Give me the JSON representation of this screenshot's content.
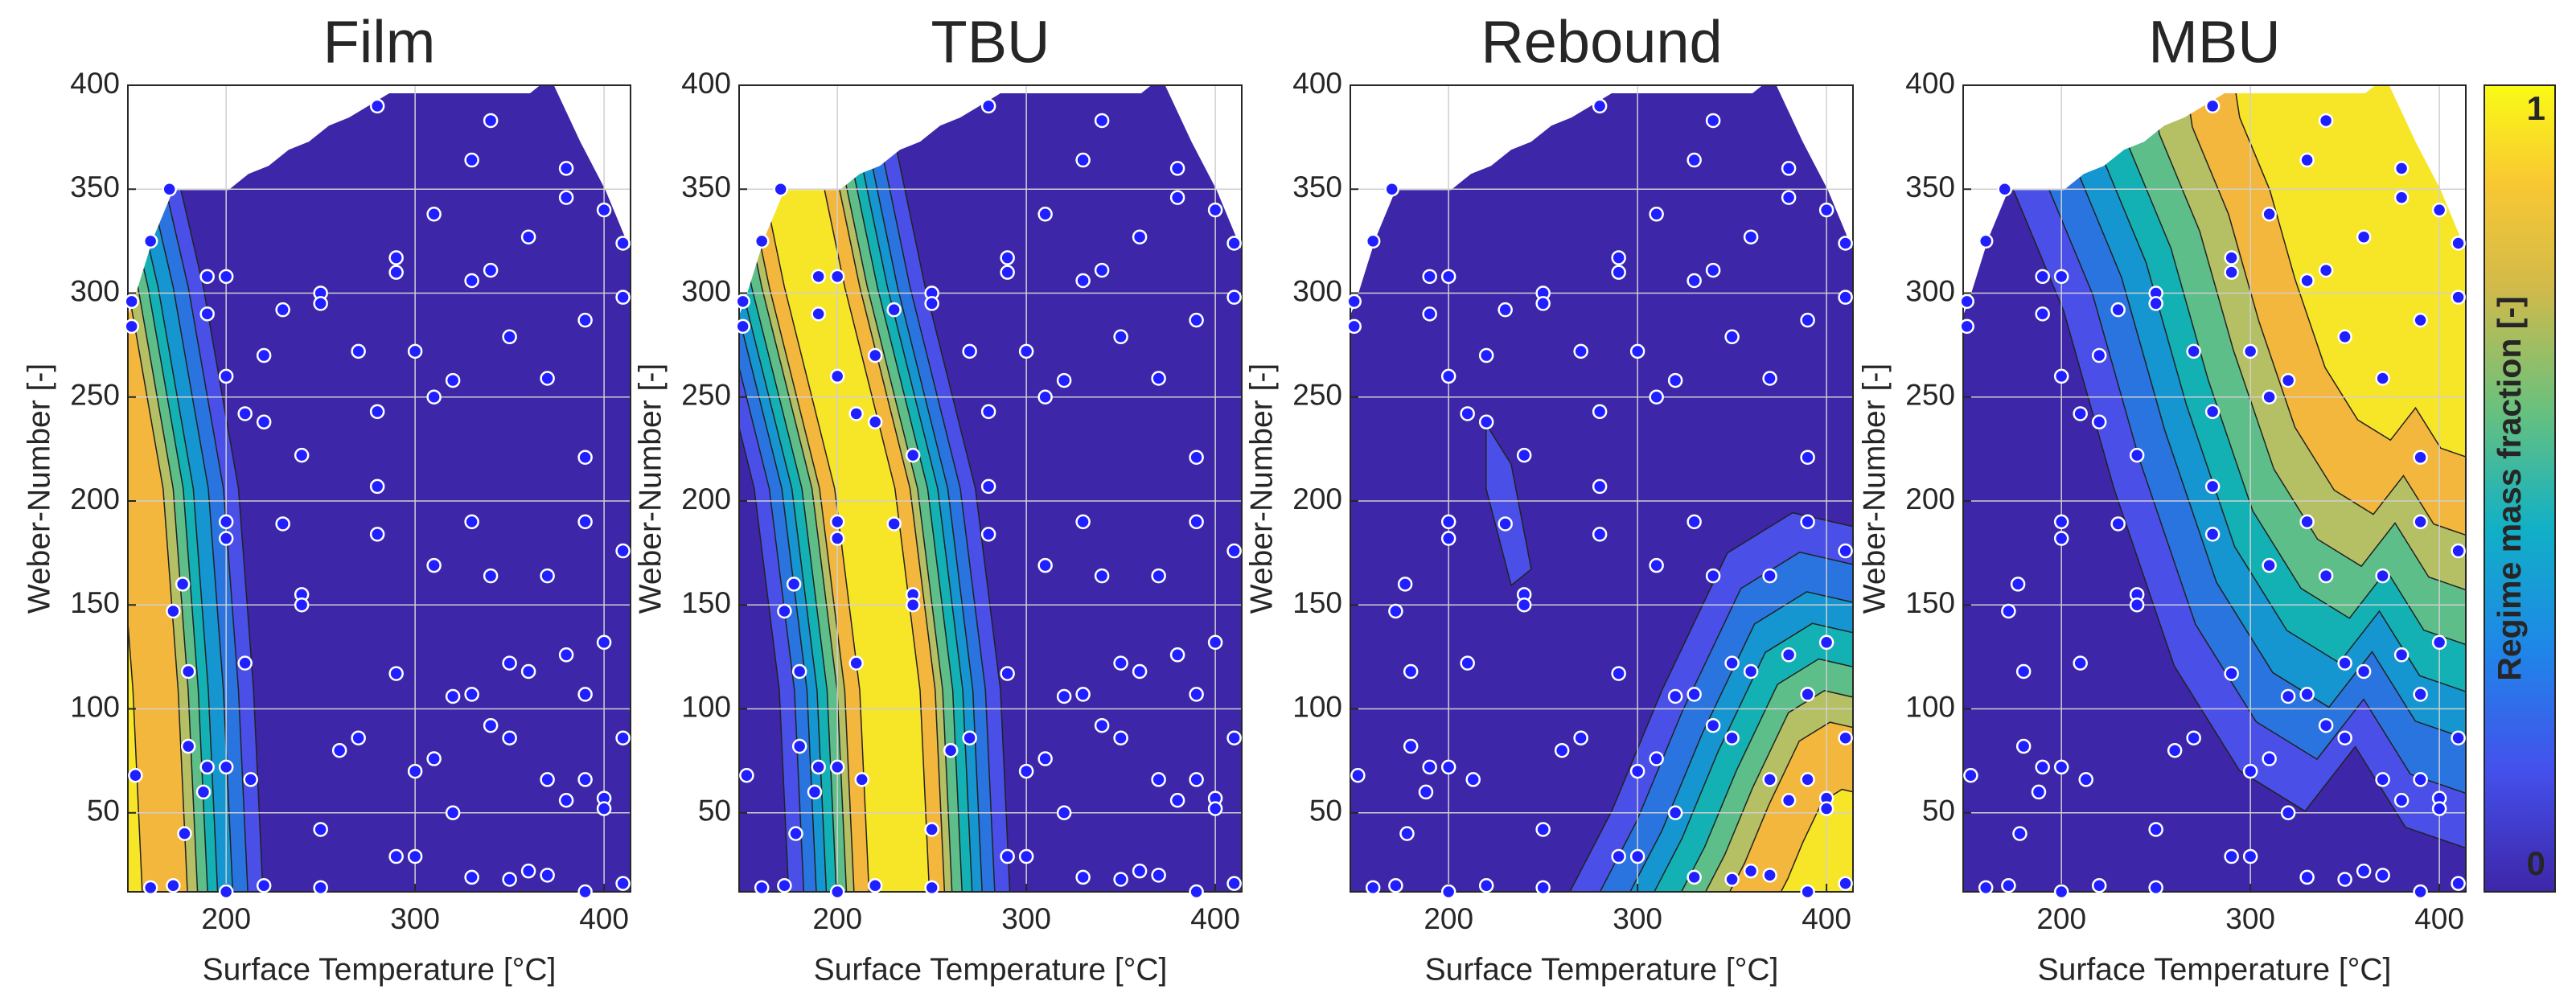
{
  "chart_data": [
    {
      "type": "contour",
      "title": "Film",
      "x_label": "Surface Temperature [°C]",
      "y_label": "Weber-Number [-]",
      "xlim": [
        148,
        414
      ],
      "ylim": [
        12,
        400
      ],
      "xticks": [
        200,
        300,
        400
      ],
      "yticks": [
        50,
        100,
        150,
        200,
        250,
        300,
        350,
        400
      ],
      "grid": true,
      "point_color": "#1f1fff",
      "points": {
        "x": [
          150,
          150,
          160,
          170,
          152,
          160,
          172,
          177,
          172,
          180,
          180,
          178,
          190,
          190,
          190,
          188,
          200,
          200,
          200,
          200,
          200,
          200,
          210,
          210,
          213,
          220,
          220,
          220,
          230,
          230,
          240,
          240,
          240,
          250,
          250,
          250,
          250,
          260,
          270,
          270,
          280,
          280,
          280,
          280,
          290,
          290,
          290,
          290,
          300,
          300,
          300,
          310,
          310,
          310,
          310,
          320,
          320,
          320,
          330,
          330,
          330,
          330,
          330,
          340,
          340,
          340,
          340,
          350,
          350,
          350,
          350,
          360,
          360,
          360,
          370,
          370,
          370,
          370,
          380,
          380,
          380,
          380,
          390,
          390,
          390,
          390,
          390,
          390,
          400,
          400,
          400,
          400,
          410,
          410,
          410,
          410,
          410
        ],
        "y": [
          296,
          284,
          325,
          350,
          68,
          14,
          15,
          160,
          147,
          118,
          82,
          40,
          308,
          290,
          72,
          60,
          12,
          308,
          260,
          190,
          182,
          72,
          242,
          122,
          66,
          270,
          238,
          15,
          292,
          189,
          222,
          155,
          150,
          300,
          295,
          42,
          14,
          80,
          272,
          86,
          390,
          243,
          207,
          184,
          317,
          310,
          117,
          29,
          272,
          70,
          29,
          338,
          250,
          169,
          76,
          258,
          106,
          50,
          364,
          306,
          190,
          107,
          19,
          383,
          311,
          164,
          92,
          279,
          122,
          86,
          18,
          327,
          118,
          22,
          259,
          164,
          66,
          20,
          360,
          346,
          126,
          56,
          287,
          221,
          190,
          107,
          66,
          12,
          340,
          132,
          57,
          52,
          324,
          298,
          176,
          86,
          16
        ]
      }
    },
    {
      "type": "contour",
      "title": "TBU",
      "x_label": "Surface Temperature [°C]",
      "y_label": "Weber-Number [-]",
      "xlim": [
        148,
        414
      ],
      "ylim": [
        12,
        400
      ],
      "xticks": [
        200,
        300,
        400
      ],
      "yticks": [
        50,
        100,
        150,
        200,
        250,
        300,
        350,
        400
      ],
      "grid": true,
      "point_color": "#1f1fff",
      "points": {
        "x": [
          150,
          150,
          160,
          170,
          152,
          160,
          172,
          177,
          172,
          180,
          180,
          178,
          190,
          190,
          190,
          188,
          200,
          200,
          200,
          200,
          200,
          200,
          210,
          210,
          213,
          220,
          220,
          220,
          230,
          230,
          240,
          240,
          240,
          250,
          250,
          250,
          250,
          260,
          270,
          270,
          280,
          280,
          280,
          280,
          290,
          290,
          290,
          290,
          300,
          300,
          300,
          310,
          310,
          310,
          310,
          320,
          320,
          320,
          330,
          330,
          330,
          330,
          330,
          340,
          340,
          340,
          340,
          350,
          350,
          350,
          350,
          360,
          360,
          360,
          370,
          370,
          370,
          370,
          380,
          380,
          380,
          380,
          390,
          390,
          390,
          390,
          390,
          390,
          400,
          400,
          400,
          400,
          410,
          410,
          410,
          410,
          410
        ],
        "y": [
          296,
          284,
          325,
          350,
          68,
          14,
          15,
          160,
          147,
          118,
          82,
          40,
          308,
          290,
          72,
          60,
          12,
          308,
          260,
          190,
          182,
          72,
          242,
          122,
          66,
          270,
          238,
          15,
          292,
          189,
          222,
          155,
          150,
          300,
          295,
          42,
          14,
          80,
          272,
          86,
          390,
          243,
          207,
          184,
          317,
          310,
          117,
          29,
          272,
          70,
          29,
          338,
          250,
          169,
          76,
          258,
          106,
          50,
          364,
          306,
          190,
          107,
          19,
          383,
          311,
          164,
          92,
          279,
          122,
          86,
          18,
          327,
          118,
          22,
          259,
          164,
          66,
          20,
          360,
          346,
          126,
          56,
          287,
          221,
          190,
          107,
          66,
          12,
          340,
          132,
          57,
          52,
          324,
          298,
          176,
          86,
          16
        ]
      }
    },
    {
      "type": "contour",
      "title": "Rebound",
      "x_label": "Surface Temperature [°C]",
      "y_label": "Weber-Number [-]",
      "xlim": [
        148,
        414
      ],
      "ylim": [
        12,
        400
      ],
      "xticks": [
        200,
        300,
        400
      ],
      "yticks": [
        50,
        100,
        150,
        200,
        250,
        300,
        350,
        400
      ],
      "grid": true,
      "point_color": "#1f1fff",
      "points": {
        "x": [
          150,
          150,
          160,
          170,
          152,
          160,
          172,
          177,
          172,
          180,
          180,
          178,
          190,
          190,
          190,
          188,
          200,
          200,
          200,
          200,
          200,
          200,
          210,
          210,
          213,
          220,
          220,
          220,
          230,
          230,
          240,
          240,
          240,
          250,
          250,
          250,
          250,
          260,
          270,
          270,
          280,
          280,
          280,
          280,
          290,
          290,
          290,
          290,
          300,
          300,
          300,
          310,
          310,
          310,
          310,
          320,
          320,
          320,
          330,
          330,
          330,
          330,
          330,
          340,
          340,
          340,
          340,
          350,
          350,
          350,
          350,
          360,
          360,
          360,
          370,
          370,
          370,
          370,
          380,
          380,
          380,
          380,
          390,
          390,
          390,
          390,
          390,
          390,
          400,
          400,
          400,
          400,
          410,
          410,
          410,
          410,
          410
        ],
        "y": [
          296,
          284,
          325,
          350,
          68,
          14,
          15,
          160,
          147,
          118,
          82,
          40,
          308,
          290,
          72,
          60,
          12,
          308,
          260,
          190,
          182,
          72,
          242,
          122,
          66,
          270,
          238,
          15,
          292,
          189,
          222,
          155,
          150,
          300,
          295,
          42,
          14,
          80,
          272,
          86,
          390,
          243,
          207,
          184,
          317,
          310,
          117,
          29,
          272,
          70,
          29,
          338,
          250,
          169,
          76,
          258,
          106,
          50,
          364,
          306,
          190,
          107,
          19,
          383,
          311,
          164,
          92,
          279,
          122,
          86,
          18,
          327,
          118,
          22,
          259,
          164,
          66,
          20,
          360,
          346,
          126,
          56,
          287,
          221,
          190,
          107,
          66,
          12,
          340,
          132,
          57,
          52,
          324,
          298,
          176,
          86,
          16
        ]
      }
    },
    {
      "type": "contour",
      "title": "MBU",
      "x_label": "Surface Temperature [°C]",
      "y_label": "Weber-Number [-]",
      "xlim": [
        148,
        414
      ],
      "ylim": [
        12,
        400
      ],
      "xticks": [
        200,
        300,
        400
      ],
      "yticks": [
        50,
        100,
        150,
        200,
        250,
        300,
        350,
        400
      ],
      "grid": true,
      "point_color": "#1f1fff",
      "points": {
        "x": [
          150,
          150,
          160,
          170,
          152,
          160,
          172,
          177,
          172,
          180,
          180,
          178,
          190,
          190,
          190,
          188,
          200,
          200,
          200,
          200,
          200,
          200,
          210,
          210,
          213,
          220,
          220,
          220,
          230,
          230,
          240,
          240,
          240,
          250,
          250,
          250,
          250,
          260,
          270,
          270,
          280,
          280,
          280,
          280,
          290,
          290,
          290,
          290,
          300,
          300,
          300,
          310,
          310,
          310,
          310,
          320,
          320,
          320,
          330,
          330,
          330,
          330,
          330,
          340,
          340,
          340,
          340,
          350,
          350,
          350,
          350,
          360,
          360,
          360,
          370,
          370,
          370,
          370,
          380,
          380,
          380,
          380,
          390,
          390,
          390,
          390,
          390,
          390,
          400,
          400,
          400,
          400,
          410,
          410,
          410,
          410,
          410
        ],
        "y": [
          296,
          284,
          325,
          350,
          68,
          14,
          15,
          160,
          147,
          118,
          82,
          40,
          308,
          290,
          72,
          60,
          12,
          308,
          260,
          190,
          182,
          72,
          242,
          122,
          66,
          270,
          238,
          15,
          292,
          189,
          222,
          155,
          150,
          300,
          295,
          42,
          14,
          80,
          272,
          86,
          390,
          243,
          207,
          184,
          317,
          310,
          117,
          29,
          272,
          70,
          29,
          338,
          250,
          169,
          76,
          258,
          106,
          50,
          364,
          306,
          190,
          107,
          19,
          383,
          311,
          164,
          92,
          279,
          122,
          86,
          18,
          327,
          118,
          22,
          259,
          164,
          66,
          20,
          360,
          346,
          126,
          56,
          287,
          221,
          190,
          107,
          66,
          12,
          340,
          132,
          57,
          52,
          324,
          298,
          176,
          86,
          16
        ]
      }
    }
  ],
  "colorbar": {
    "label": "Regime mass fraction [-]",
    "lim": [
      0,
      1
    ],
    "ticks": [
      0,
      1
    ]
  }
}
